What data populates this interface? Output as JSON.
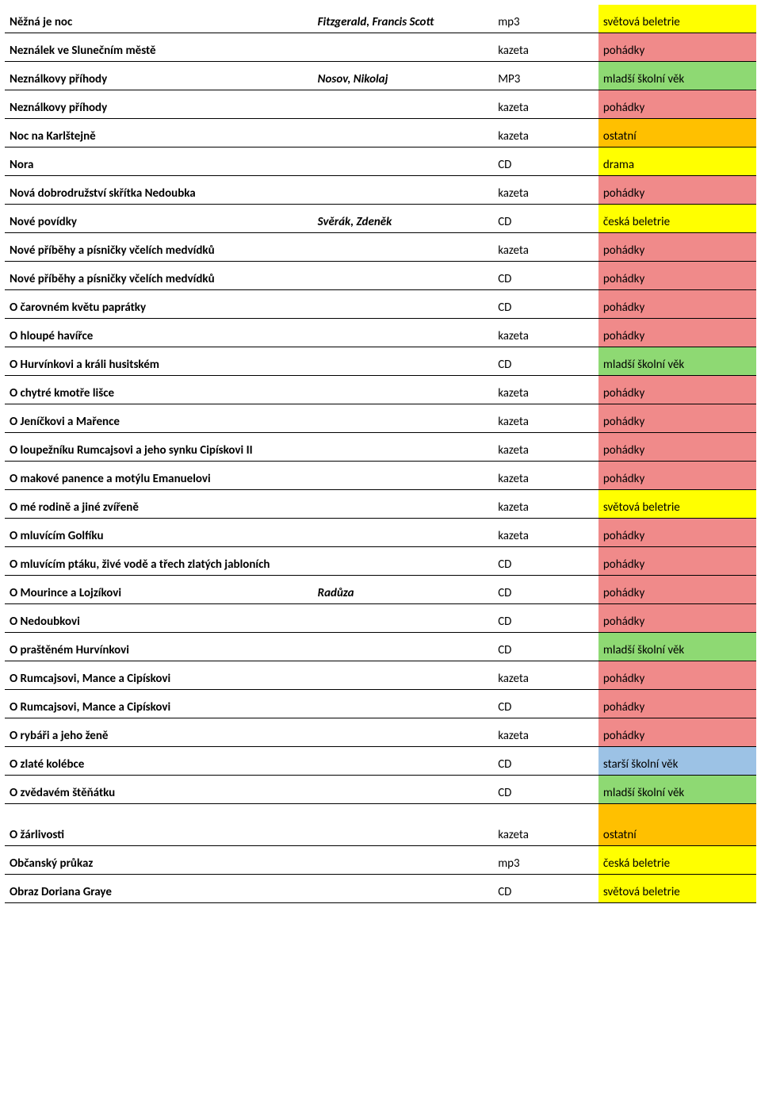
{
  "colors": {
    "yellow": "#ffff00",
    "pink": "#f08a8a",
    "green": "#8ed973",
    "orange": "#ffc000",
    "blue": "#9cc2e5"
  },
  "columns": [
    "title",
    "author",
    "format",
    "category"
  ],
  "rows": [
    {
      "title": "Něžná je noc",
      "author": "Fitzgerald, Francis Scott",
      "format": "mp3",
      "category": "světová beletrie",
      "cat_color": "yellow"
    },
    {
      "title": "Neználek ve Slunečním městě",
      "author": "",
      "format": "kazeta",
      "category": "pohádky",
      "cat_color": "pink"
    },
    {
      "title": "Neználkovy příhody",
      "author": "Nosov, Nikolaj",
      "format": "MP3",
      "category": "mladší školní věk",
      "cat_color": "green"
    },
    {
      "title": "Neználkovy příhody",
      "author": "",
      "format": "kazeta",
      "category": "pohádky",
      "cat_color": "pink"
    },
    {
      "title": "Noc na Karlštejně",
      "author": "",
      "format": "kazeta",
      "category": "ostatní",
      "cat_color": "orange"
    },
    {
      "title": "Nora",
      "author": "",
      "format": "CD",
      "category": "drama",
      "cat_color": "yellow"
    },
    {
      "title": "Nová dobrodružství skřítka Nedoubka",
      "author": "",
      "format": "kazeta",
      "category": "pohádky",
      "cat_color": "pink"
    },
    {
      "title": "Nové povídky",
      "author": "Svěrák, Zdeněk",
      "format": "CD",
      "category": "česká beletrie",
      "cat_color": "yellow"
    },
    {
      "title": "Nové příběhy a písničky včelích medvídků",
      "author": "",
      "format": "kazeta",
      "category": "pohádky",
      "cat_color": "pink"
    },
    {
      "title": "Nové příběhy a písničky včelích medvídků",
      "author": "",
      "format": "CD",
      "category": "pohádky",
      "cat_color": "pink"
    },
    {
      "title": "O čarovném květu paprátky",
      "author": "",
      "format": "CD",
      "category": "pohádky",
      "cat_color": "pink"
    },
    {
      "title": "O hloupé havířce",
      "author": "",
      "format": "kazeta",
      "category": "pohádky",
      "cat_color": "pink"
    },
    {
      "title": "O Hurvínkovi a králi husitském",
      "author": "",
      "format": "CD",
      "category": "mladší školní věk",
      "cat_color": "green"
    },
    {
      "title": "O chytré kmotře lišce",
      "author": "",
      "format": "kazeta",
      "category": "pohádky",
      "cat_color": "pink"
    },
    {
      "title": "O Jeníčkovi a Mařence",
      "author": "",
      "format": "kazeta",
      "category": "pohádky",
      "cat_color": "pink"
    },
    {
      "title": "O loupežníku Rumcajsovi a jeho synku Cipískovi II",
      "author": "",
      "format": "kazeta",
      "category": "pohádky",
      "cat_color": "pink"
    },
    {
      "title": "O makové panence a motýlu Emanuelovi",
      "author": "",
      "format": "kazeta",
      "category": "pohádky",
      "cat_color": "pink"
    },
    {
      "title": "O mé rodině a jiné zvířeně",
      "author": "",
      "format": "kazeta",
      "category": "světová beletrie",
      "cat_color": "yellow"
    },
    {
      "title": "O mluvícím Golfíku",
      "author": "",
      "format": "kazeta",
      "category": "pohádky",
      "cat_color": "pink"
    },
    {
      "title": "O mluvícím ptáku, živé vodě a třech zlatých jabloních",
      "author": "",
      "format": "CD",
      "category": "pohádky",
      "cat_color": "pink"
    },
    {
      "title": "O Mourince a Lojzíkovi",
      "author": "Radůza",
      "format": "CD",
      "category": "pohádky",
      "cat_color": "pink"
    },
    {
      "title": "O Nedoubkovi",
      "author": "",
      "format": "CD",
      "category": "pohádky",
      "cat_color": "pink"
    },
    {
      "title": "O praštěném Hurvínkovi",
      "author": "",
      "format": "CD",
      "category": "mladší školní věk",
      "cat_color": "green"
    },
    {
      "title": "O Rumcajsovi, Mance a Cipískovi",
      "author": "",
      "format": "kazeta",
      "category": "pohádky",
      "cat_color": "pink"
    },
    {
      "title": "O Rumcajsovi, Mance a Cipískovi",
      "author": "",
      "format": "CD",
      "category": "pohádky",
      "cat_color": "pink"
    },
    {
      "title": "O rybáři a jeho ženě",
      "author": "",
      "format": "kazeta",
      "category": "pohádky",
      "cat_color": "pink"
    },
    {
      "title": "O zlaté kolébce",
      "author": "",
      "format": "CD",
      "category": "starší školní věk",
      "cat_color": "blue"
    },
    {
      "title": "O zvědavém štěňátku",
      "author": "",
      "format": "CD",
      "category": "mladší školní věk",
      "cat_color": "green"
    },
    {
      "title": "O žárlivosti",
      "author": "",
      "format": "kazeta",
      "category": "ostatní",
      "cat_color": "orange",
      "extra_space": true
    },
    {
      "title": "Občanský průkaz",
      "author": "",
      "format": "mp3",
      "category": "česká beletrie",
      "cat_color": "yellow"
    },
    {
      "title": "Obraz Doriana Graye",
      "author": "",
      "format": "CD",
      "category": "světová beletrie",
      "cat_color": "yellow"
    }
  ]
}
